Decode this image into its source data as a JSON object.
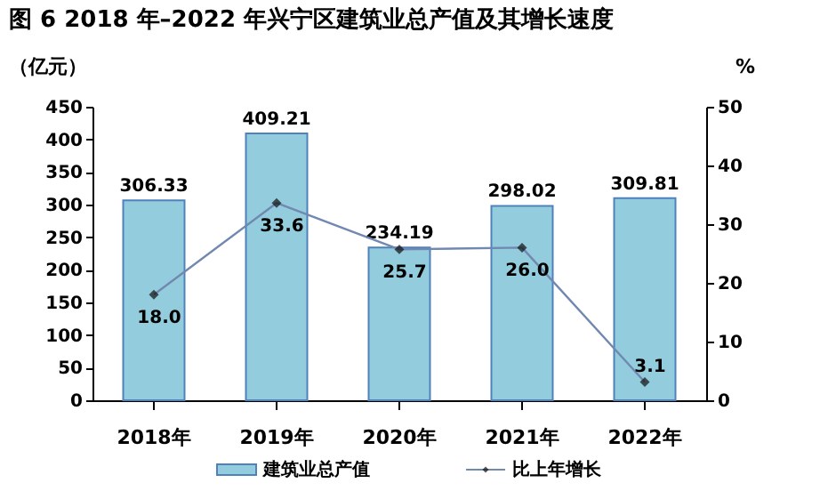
{
  "chart_data": {
    "type": "bar",
    "title": "图 6   2018 年–2022 年兴宁区建筑业总产值及其增长速度",
    "ylabel": "（亿元）",
    "y2label": "%",
    "categories": [
      "2018年",
      "2019年",
      "2020年",
      "2021年",
      "2022年"
    ],
    "series": [
      {
        "name": "建筑业总产值",
        "type": "bar",
        "color": "#93cddd",
        "values": [
          306.33,
          409.21,
          234.19,
          298.02,
          309.81
        ]
      },
      {
        "name": "比上年增长",
        "type": "line",
        "axis": "y2",
        "color": "#7188b0",
        "values": [
          18.0,
          33.6,
          25.7,
          26.0,
          3.1
        ],
        "value_labels": [
          "18.0",
          "33.6",
          "25.7",
          "26.0",
          "3.1"
        ]
      }
    ],
    "ylim": [
      0,
      450
    ],
    "yticks": [
      0,
      50,
      100,
      150,
      200,
      250,
      300,
      350,
      400,
      450
    ],
    "y2lim": [
      0,
      50
    ],
    "y2ticks": [
      0,
      10,
      20,
      30,
      40,
      50
    ],
    "value_labels": [
      "306.33",
      "409.21",
      "234.19",
      "298.02",
      "309.81"
    ],
    "data_labels": true,
    "grid": false,
    "legend": "bottom",
    "marker": "diamond",
    "line_style": "solid"
  }
}
